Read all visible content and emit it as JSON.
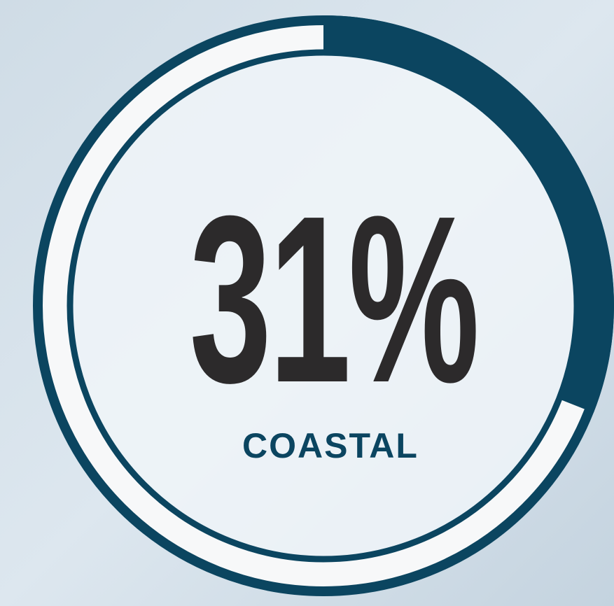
{
  "chart_data": {
    "type": "gauge",
    "categories": [
      "COASTAL"
    ],
    "values": [
      31
    ],
    "value_labels": [
      "31%"
    ],
    "color": "#0b4560",
    "ylim": [
      0,
      100
    ]
  }
}
